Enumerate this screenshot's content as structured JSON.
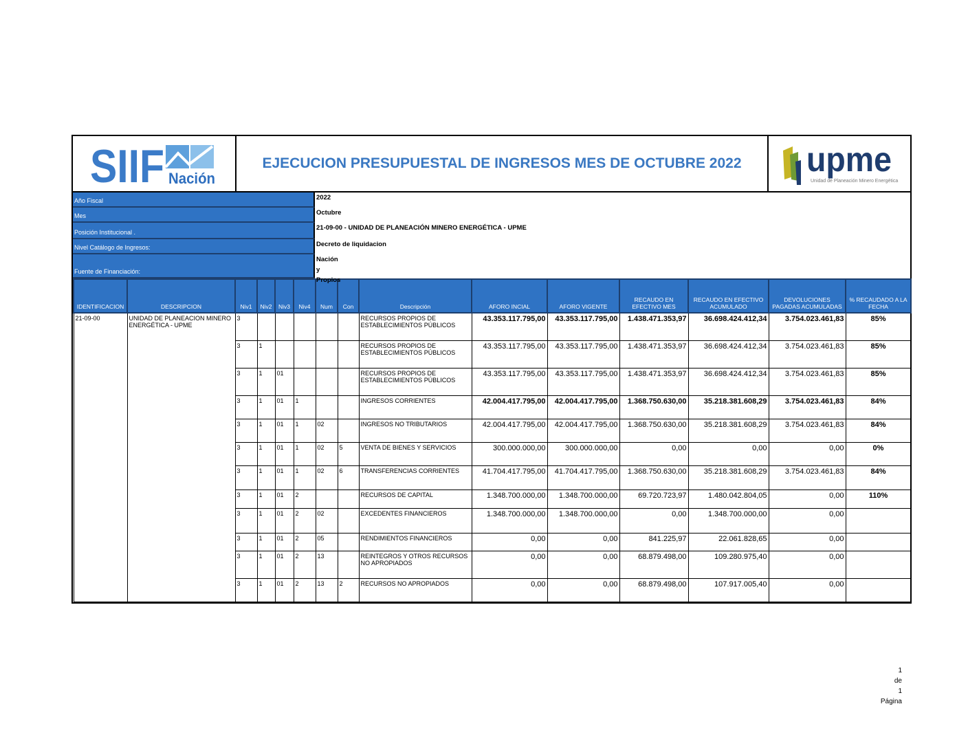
{
  "header": {
    "title": "EJECUCION PRESUPUESTAL DE INGRESOS MES DE OCTUBRE 2022",
    "left_logo": "SIIF Nación",
    "right_logo": "upme",
    "right_logo_sub": "Unidad de Planeación Minero Energética"
  },
  "info": [
    {
      "label": "Año Fiscal",
      "value": "2022"
    },
    {
      "label": "Mes",
      "value": "Octubre"
    },
    {
      "label": "Posición Institucional .",
      "value": "21-09-00 - UNIDAD DE PLANEACIÓN MINERO ENERGÉTICA - UPME"
    },
    {
      "label": "Nivel Catálogo de Ingresos:",
      "value": "Decreto de liquidacion"
    },
    {
      "label": "Fuente de Financiación:",
      "value": "Nación y Propios"
    }
  ],
  "table": {
    "columns": [
      "IDENTIFICACION",
      "DESCRIPCION",
      "Niv1",
      "Niv2",
      "Niv3",
      "Niv4",
      "Num",
      "Con",
      "Descripción",
      "AFORO INCIAL",
      "AFORO VIGENTE",
      "RECAUDO EN EFECTIVO MES",
      "RECAUDO EN EFECTIVO ACUMULADO",
      "DEVOLUCIONES PAGADAS ACUMULADAS",
      "% RECAUDADO A LA FECHA"
    ],
    "identificacion": "21-09-00",
    "descripcion": "UNIDAD DE PLANEACION MINERO ENERGÉTICA - UPME",
    "rows": [
      {
        "niv1": "3",
        "niv2": "",
        "niv3": "",
        "niv4": "",
        "num": "",
        "con": "",
        "desc": "RECURSOS PROPIOS DE ESTABLECIMIENTOS PÚBLICOS",
        "aforo_inicial": "43.353.117.795,00",
        "aforo_vigente": "43.353.117.795,00",
        "recaudo_mes": "1.438.471.353,97",
        "recaudo_acum": "36.698.424.412,34",
        "devoluciones": "3.754.023.461,83",
        "pct": "85%",
        "bold": true
      },
      {
        "niv1": "3",
        "niv2": "1",
        "niv3": "",
        "niv4": "",
        "num": "",
        "con": "",
        "desc": "RECURSOS PROPIOS DE ESTABLECIMIENTOS PÚBLICOS",
        "aforo_inicial": "43.353.117.795,00",
        "aforo_vigente": "43.353.117.795,00",
        "recaudo_mes": "1.438.471.353,97",
        "recaudo_acum": "36.698.424.412,34",
        "devoluciones": "3.754.023.461,83",
        "pct": "85%"
      },
      {
        "niv1": "3",
        "niv2": "1",
        "niv3": "01",
        "niv4": "",
        "num": "",
        "con": "",
        "desc": "RECURSOS PROPIOS DE ESTABLECIMIENTOS PÚBLICOS",
        "aforo_inicial": "43.353.117.795,00",
        "aforo_vigente": "43.353.117.795,00",
        "recaudo_mes": "1.438.471.353,97",
        "recaudo_acum": "36.698.424.412,34",
        "devoluciones": "3.754.023.461,83",
        "pct": "85%"
      },
      {
        "niv1": "3",
        "niv2": "1",
        "niv3": "01",
        "niv4": "1",
        "num": "",
        "con": "",
        "desc": "INGRESOS CORRIENTES",
        "aforo_inicial": "42.004.417.795,00",
        "aforo_vigente": "42.004.417.795,00",
        "recaudo_mes": "1.368.750.630,00",
        "recaudo_acum": "35.218.381.608,29",
        "devoluciones": "3.754.023.461,83",
        "pct": "84%",
        "bold": true
      },
      {
        "niv1": "3",
        "niv2": "1",
        "niv3": "01",
        "niv4": "1",
        "num": "02",
        "con": "",
        "desc": "INGRESOS NO TRIBUTARIOS",
        "aforo_inicial": "42.004.417.795,00",
        "aforo_vigente": "42.004.417.795,00",
        "recaudo_mes": "1.368.750.630,00",
        "recaudo_acum": "35.218.381.608,29",
        "devoluciones": "3.754.023.461,83",
        "pct": "84%"
      },
      {
        "niv1": "3",
        "niv2": "1",
        "niv3": "01",
        "niv4": "1",
        "num": "02",
        "con": "5",
        "desc": "VENTA DE BIENES Y SERVICIOS",
        "aforo_inicial": "300.000.000,00",
        "aforo_vigente": "300.000.000,00",
        "recaudo_mes": "0,00",
        "recaudo_acum": "0,00",
        "devoluciones": "0,00",
        "pct": "0%"
      },
      {
        "niv1": "3",
        "niv2": "1",
        "niv3": "01",
        "niv4": "1",
        "num": "02",
        "con": "6",
        "desc": "TRANSFERENCIAS CORRIENTES",
        "aforo_inicial": "41.704.417.795,00",
        "aforo_vigente": "41.704.417.795,00",
        "recaudo_mes": "1.368.750.630,00",
        "recaudo_acum": "35.218.381.608,29",
        "devoluciones": "3.754.023.461,83",
        "pct": "84%"
      },
      {
        "niv1": "3",
        "niv2": "1",
        "niv3": "01",
        "niv4": "2",
        "num": "",
        "con": "",
        "desc": "RECURSOS DE CAPITAL",
        "aforo_inicial": "1.348.700.000,00",
        "aforo_vigente": "1.348.700.000,00",
        "recaudo_mes": "69.720.723,97",
        "recaudo_acum": "1.480.042.804,05",
        "devoluciones": "0,00",
        "pct": "110%"
      },
      {
        "niv1": "3",
        "niv2": "1",
        "niv3": "01",
        "niv4": "2",
        "num": "02",
        "con": "",
        "desc": "EXCEDENTES FINANCIEROS",
        "aforo_inicial": "1.348.700.000,00",
        "aforo_vigente": "1.348.700.000,00",
        "recaudo_mes": "0,00",
        "recaudo_acum": "1.348.700.000,00",
        "devoluciones": "0,00",
        "pct": ""
      },
      {
        "niv1": "3",
        "niv2": "1",
        "niv3": "01",
        "niv4": "2",
        "num": "05",
        "con": "",
        "desc": "RENDIMIENTOS FINANCIEROS",
        "aforo_inicial": "0,00",
        "aforo_vigente": "0,00",
        "recaudo_mes": "841.225,97",
        "recaudo_acum": "22.061.828,65",
        "devoluciones": "0,00",
        "pct": ""
      },
      {
        "niv1": "3",
        "niv2": "1",
        "niv3": "01",
        "niv4": "2",
        "num": "13",
        "con": "",
        "desc": "REINTEGROS Y OTROS RECURSOS NO APROPIADOS",
        "aforo_inicial": "0,00",
        "aforo_vigente": "0,00",
        "recaudo_mes": "68.879.498,00",
        "recaudo_acum": "109.280.975,40",
        "devoluciones": "0,00",
        "pct": ""
      },
      {
        "niv1": "3",
        "niv2": "1",
        "niv3": "01",
        "niv4": "2",
        "num": "13",
        "con": "2",
        "desc": "RECURSOS NO APROPIADOS",
        "aforo_inicial": "0,00",
        "aforo_vigente": "0,00",
        "recaudo_mes": "68.879.498,00",
        "recaudo_acum": "107.917.005,40",
        "devoluciones": "0,00",
        "pct": ""
      }
    ]
  },
  "footer": {
    "page": "1",
    "de": "de",
    "total": "1",
    "label": "Página"
  },
  "colors": {
    "header_blue": "#2f73c4",
    "title_blue": "#3a78c2"
  }
}
